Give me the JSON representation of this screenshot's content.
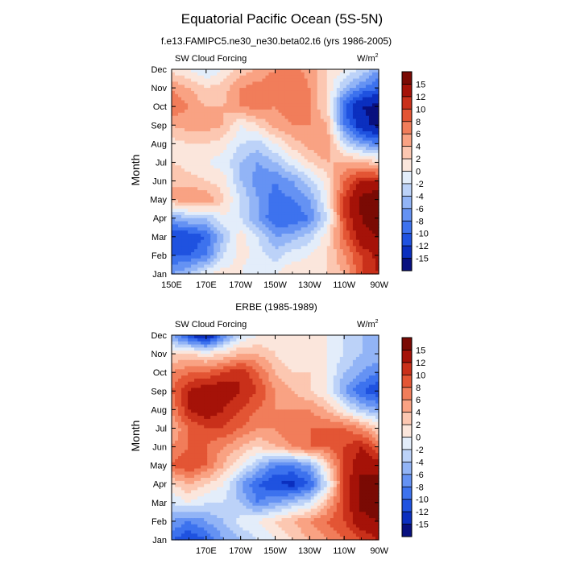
{
  "figure": {
    "title": "Equatorial Pacific Ocean (5S-5N)",
    "colorbar": {
      "levels": [
        -15,
        -12,
        -10,
        -8,
        -6,
        -4,
        -2,
        0,
        2,
        4,
        6,
        8,
        10,
        12,
        15
      ],
      "colors": [
        "#08107f",
        "#0b2fbf",
        "#1f52e0",
        "#3d72ee",
        "#6592f3",
        "#92b4f6",
        "#bcd2f8",
        "#e3edfa",
        "#fbe6dc",
        "#fcc7b1",
        "#f9a283",
        "#f17d5a",
        "#e35534",
        "#c9301a",
        "#a51208",
        "#7a0a04"
      ]
    }
  },
  "chart_data": [
    {
      "type": "heatmap",
      "title": "f.e13.FAMIPC5.ne30_ne30.beta02.t6 (yrs 1986-2005)",
      "left_label": "SW Cloud Forcing",
      "units_base": "W/m",
      "units_exp": "2",
      "ylabel": "Month",
      "xlabel": "",
      "xlim": [
        150,
        270
      ],
      "x_ticks": [
        150,
        170,
        190,
        210,
        230,
        250,
        270
      ],
      "x_tick_labels": [
        "150E",
        "170E",
        "170W",
        "150W",
        "130W",
        "110W",
        "90W"
      ],
      "y_tick_labels": [
        "Jan",
        "Feb",
        "Mar",
        "Apr",
        "May",
        "Jun",
        "Jul",
        "Aug",
        "Sep",
        "Oct",
        "Nov",
        "Dec"
      ],
      "lon_grid": [
        150,
        160,
        170,
        180,
        190,
        200,
        210,
        220,
        230,
        240,
        250,
        260,
        270
      ],
      "values": [
        [
          -6,
          -4,
          0,
          1,
          0,
          -2,
          0,
          2,
          1,
          2,
          4,
          10,
          12
        ],
        [
          -10,
          -10,
          -8,
          -2,
          1,
          -1,
          -3,
          -1,
          0,
          2,
          6,
          10,
          13
        ],
        [
          -12,
          -12,
          -10,
          -4,
          1,
          -2,
          -6,
          -5,
          -3,
          1,
          8,
          14,
          15
        ],
        [
          -6,
          -4,
          -4,
          0,
          -2,
          -6,
          -10,
          -10,
          -8,
          -2,
          10,
          15,
          17
        ],
        [
          4,
          6,
          6,
          2,
          -2,
          -6,
          -9,
          -8,
          -6,
          0,
          10,
          16,
          18
        ],
        [
          4,
          3,
          2,
          1,
          -4,
          -7,
          -8,
          -6,
          -3,
          1,
          8,
          12,
          12
        ],
        [
          2,
          1,
          0,
          -1,
          -4,
          -6,
          -4,
          -1,
          2,
          4,
          4,
          4,
          2
        ],
        [
          1,
          2,
          2,
          1,
          -2,
          -3,
          0,
          3,
          5,
          6,
          -2,
          -6,
          -8
        ],
        [
          4,
          5,
          5,
          4,
          0,
          2,
          5,
          6,
          6,
          4,
          -8,
          -14,
          -16
        ],
        [
          8,
          6,
          4,
          4,
          6,
          7,
          6,
          7,
          6,
          2,
          -10,
          -15,
          -16
        ],
        [
          6,
          4,
          2,
          3,
          6,
          7,
          8,
          8,
          6,
          2,
          -4,
          -8,
          -10
        ],
        [
          1,
          0,
          -2,
          0,
          3,
          4,
          6,
          7,
          5,
          2,
          0,
          -2,
          -6
        ]
      ]
    },
    {
      "type": "heatmap",
      "title": "ERBE (1985-1989)",
      "left_label": "SW Cloud Forcing",
      "units_base": "W/m",
      "units_exp": "2",
      "ylabel": "Month",
      "xlabel": "",
      "xlim": [
        150,
        270
      ],
      "x_ticks": [
        170,
        190,
        210,
        230,
        250,
        270
      ],
      "x_tick_labels": [
        "170E",
        "170W",
        "150W",
        "130W",
        "110W",
        "90W"
      ],
      "y_tick_labels": [
        "Jan",
        "Feb",
        "Mar",
        "Apr",
        "May",
        "Jun",
        "Jul",
        "Aug",
        "Sep",
        "Oct",
        "Nov",
        "Dec"
      ],
      "lon_grid": [
        150,
        160,
        170,
        180,
        190,
        200,
        210,
        220,
        230,
        240,
        250,
        260,
        270
      ],
      "values": [
        [
          -10,
          -12,
          -10,
          -6,
          -4,
          -2,
          0,
          2,
          4,
          6,
          8,
          10,
          12
        ],
        [
          -6,
          -8,
          -6,
          -4,
          -1,
          0,
          2,
          4,
          6,
          8,
          10,
          14,
          15
        ],
        [
          -2,
          0,
          -2,
          -2,
          -4,
          -8,
          -6,
          -4,
          -2,
          4,
          10,
          16,
          17
        ],
        [
          2,
          4,
          2,
          0,
          -6,
          -10,
          -12,
          -13,
          -10,
          -2,
          10,
          16,
          16
        ],
        [
          8,
          10,
          8,
          4,
          0,
          -4,
          -8,
          -8,
          -6,
          2,
          10,
          14,
          14
        ],
        [
          6,
          8,
          8,
          6,
          4,
          2,
          4,
          6,
          8,
          8,
          10,
          12,
          8
        ],
        [
          4,
          8,
          10,
          10,
          8,
          6,
          6,
          8,
          8,
          8,
          8,
          6,
          2
        ],
        [
          6,
          12,
          14,
          12,
          10,
          8,
          6,
          6,
          6,
          4,
          0,
          -4,
          -6
        ],
        [
          8,
          12,
          14,
          14,
          12,
          10,
          6,
          4,
          2,
          0,
          -6,
          -10,
          -12
        ],
        [
          6,
          8,
          8,
          10,
          12,
          8,
          4,
          2,
          2,
          0,
          -4,
          -6,
          -8
        ],
        [
          2,
          2,
          1,
          2,
          4,
          4,
          2,
          0,
          2,
          0,
          -2,
          -4,
          -4
        ],
        [
          -6,
          -12,
          -16,
          -8,
          -2,
          0,
          0,
          0,
          2,
          0,
          -2,
          -4,
          -6
        ]
      ]
    }
  ]
}
